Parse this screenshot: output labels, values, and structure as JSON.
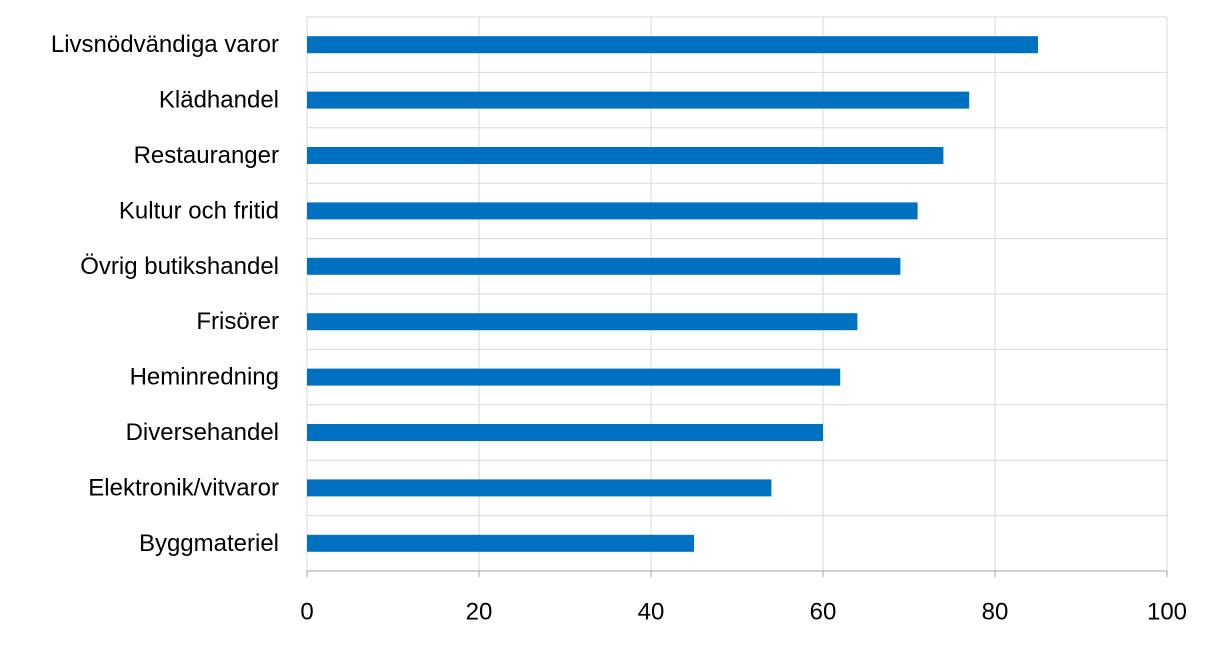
{
  "chart_data": {
    "type": "bar",
    "orientation": "horizontal",
    "categories": [
      "Livsnödvändiga varor",
      "Klädhandel",
      "Restauranger",
      "Kultur och fritid",
      "Övrig butikshandel ",
      "Frisörer",
      "Heminredning",
      "Diversehandel",
      "Elektronik/vitvaror",
      "Byggmateriel"
    ],
    "values": [
      85,
      77,
      74,
      71,
      69,
      64,
      62,
      60,
      54,
      45
    ],
    "xlim": [
      0,
      100
    ],
    "xticks": [
      "0",
      "20",
      "40",
      "60",
      "80",
      "100"
    ],
    "title": "",
    "xlabel": "",
    "ylabel": "",
    "grid": true,
    "bar_color": "#0070c0",
    "grid_color": "#d9d9d9"
  }
}
